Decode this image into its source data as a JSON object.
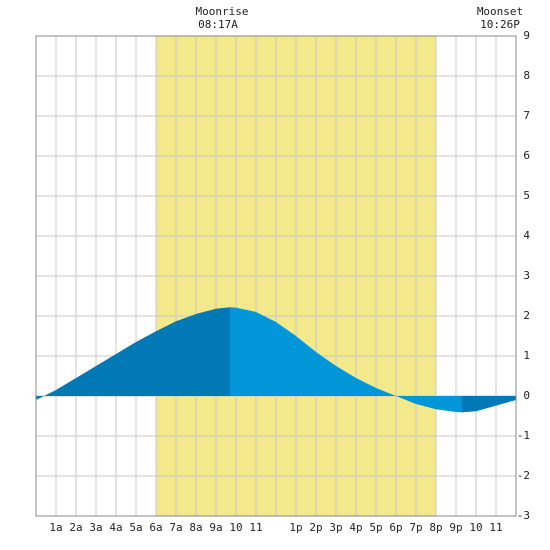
{
  "chart_data": {
    "type": "tide",
    "moonrise": {
      "label": "Moonrise",
      "time": "08:17A"
    },
    "moonset": {
      "label": "Moonset",
      "time": "10:26P"
    },
    "daylight": [
      6,
      20
    ],
    "daylight_color": "#f3e98a",
    "x": [
      0,
      1,
      2,
      3,
      4,
      5,
      6,
      7,
      8,
      9,
      9.7,
      10,
      11,
      12,
      13,
      14,
      15,
      16,
      17,
      18,
      19,
      20,
      21,
      21.3,
      22,
      23,
      24
    ],
    "values": [
      -0.1,
      0.15,
      0.45,
      0.75,
      1.05,
      1.35,
      1.62,
      1.87,
      2.05,
      2.18,
      2.22,
      2.21,
      2.1,
      1.85,
      1.5,
      1.1,
      0.75,
      0.45,
      0.2,
      0.0,
      -0.2,
      -0.33,
      -0.4,
      -0.41,
      -0.38,
      -0.24,
      -0.1
    ],
    "rising_color": "#0079b6",
    "falling_color": "#0096d8",
    "xlim": [
      0,
      24
    ],
    "ylim": [
      -3,
      9
    ],
    "xticks": [
      {
        "value": 1,
        "label": "1a"
      },
      {
        "value": 2,
        "label": "2a"
      },
      {
        "value": 3,
        "label": "3a"
      },
      {
        "value": 4,
        "label": "4a"
      },
      {
        "value": 5,
        "label": "5a"
      },
      {
        "value": 6,
        "label": "6a"
      },
      {
        "value": 7,
        "label": "7a"
      },
      {
        "value": 8,
        "label": "8a"
      },
      {
        "value": 9,
        "label": "9a"
      },
      {
        "value": 10,
        "label": "10"
      },
      {
        "value": 11,
        "label": "11"
      },
      {
        "value": 12,
        "label": null
      },
      {
        "value": 13,
        "label": "1p"
      },
      {
        "value": 14,
        "label": "2p"
      },
      {
        "value": 15,
        "label": "3p"
      },
      {
        "value": 16,
        "label": "4p"
      },
      {
        "value": 17,
        "label": "5p"
      },
      {
        "value": 18,
        "label": "6p"
      },
      {
        "value": 19,
        "label": "7p"
      },
      {
        "value": 20,
        "label": "8p"
      },
      {
        "value": 21,
        "label": "9p"
      },
      {
        "value": 22,
        "label": "10"
      },
      {
        "value": 23,
        "label": "11"
      }
    ],
    "yticks": [
      -3,
      -2,
      -1,
      0,
      1,
      2,
      3,
      4,
      5,
      6,
      7,
      8,
      9
    ],
    "grid": true
  }
}
